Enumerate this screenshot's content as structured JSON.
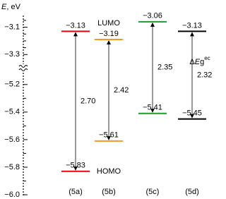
{
  "chart_data": {
    "type": "energy-level",
    "y_label": {
      "italic": "E",
      "rest": ", eV"
    },
    "y_segments": [
      {
        "ylim": [
          -3.35,
          -3.03
        ],
        "yticks": [
          {
            "value": -3.1,
            "label": "−3.1"
          },
          {
            "value": -3.3,
            "label": "−3.3"
          }
        ],
        "minor_yticks": [
          -3.05,
          -3.15,
          -3.2,
          -3.25
        ]
      },
      {
        "ylim": [
          -6.0,
          -5.15
        ],
        "yticks": [
          {
            "value": -5.2,
            "label": "−5.2"
          },
          {
            "value": -5.4,
            "label": "−5.4"
          },
          {
            "value": -5.6,
            "label": "−5.6"
          },
          {
            "value": -5.8,
            "label": "−5.8"
          },
          {
            "value": -6.0,
            "label": "−6.0"
          }
        ],
        "minor_yticks": [
          -5.3,
          -5.5,
          -5.7,
          -5.9
        ]
      }
    ],
    "categories": [
      "LUMO",
      "HOMO"
    ],
    "gap_label": {
      "prefix": "Δ",
      "italic": "E",
      "main": "g",
      "sup": "ec"
    },
    "series": [
      {
        "name": "(5a)",
        "color": "#e8000b",
        "values": [
          -3.13,
          -5.83
        ],
        "value_labels": [
          "−3.13",
          "−5.83"
        ],
        "gap": 2.7,
        "gap_value_label": "2.70"
      },
      {
        "name": "(5b)",
        "color": "#f39a1f",
        "values": [
          -3.19,
          -5.61
        ],
        "value_labels": [
          "−3.19",
          "−5.61"
        ],
        "gap": 2.42,
        "gap_value_label": "2.42"
      },
      {
        "name": "(5c)",
        "color": "#1e9a2a",
        "values": [
          -3.06,
          -5.41
        ],
        "value_labels": [
          "−3.06",
          "−5.41"
        ],
        "gap": 2.35,
        "gap_value_label": "2.35"
      },
      {
        "name": "(5d)",
        "color": "#000000",
        "values": [
          -3.13,
          -5.45
        ],
        "value_labels": [
          "−3.13",
          "−5.45"
        ],
        "gap": 2.32,
        "gap_value_label": "2.32"
      }
    ]
  }
}
